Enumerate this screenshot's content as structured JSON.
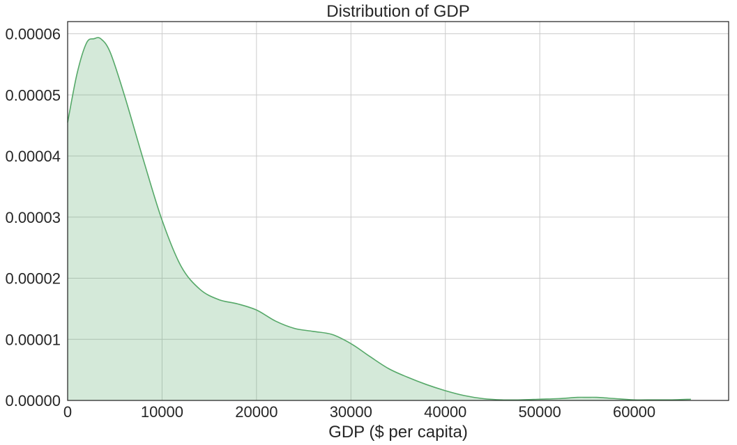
{
  "chart_data": {
    "type": "area",
    "title": "Distribution of GDP",
    "xlabel": "GDP ($ per capita)",
    "ylabel": "",
    "xlim": [
      0,
      70000
    ],
    "ylim": [
      0,
      6.2e-05
    ],
    "x_ticks": [
      0,
      10000,
      20000,
      30000,
      40000,
      50000,
      60000
    ],
    "x_tick_labels": [
      "0",
      "10000",
      "20000",
      "30000",
      "40000",
      "50000",
      "60000"
    ],
    "y_ticks": [
      0,
      1e-05,
      2e-05,
      3e-05,
      4e-05,
      5e-05,
      6e-05
    ],
    "y_tick_labels": [
      "0.00000",
      "0.00001",
      "0.00002",
      "0.00003",
      "0.00004",
      "0.00005",
      "0.00006"
    ],
    "grid": true,
    "line_color": "#55a868",
    "fill_color": "#55a868",
    "fill_opacity": 0.25,
    "series": [
      {
        "x": [
          0,
          1000,
          2000,
          2800,
          3500,
          4500,
          6000,
          8000,
          10000,
          12000,
          14000,
          16000,
          18000,
          20000,
          22000,
          24000,
          26000,
          28000,
          30000,
          32000,
          34000,
          36000,
          38000,
          40000,
          42000,
          44000,
          46000,
          48000,
          50000,
          52000,
          54000,
          55000,
          56000,
          58000,
          60000,
          62000,
          64000,
          66000
        ],
        "y": [
          4.55e-05,
          5.35e-05,
          5.85e-05,
          5.92e-05,
          5.92e-05,
          5.7e-05,
          5e-05,
          3.95e-05,
          2.95e-05,
          2.2e-05,
          1.82e-05,
          1.65e-05,
          1.58e-05,
          1.48e-05,
          1.3e-05,
          1.18e-05,
          1.13e-05,
          1.08e-05,
          9.3e-06,
          7.2e-06,
          5.2e-06,
          3.8e-06,
          2.6e-06,
          1.6e-06,
          8e-07,
          3e-07,
          1e-07,
          1e-07,
          2e-07,
          3e-07,
          5e-07,
          5e-07,
          5e-07,
          3e-07,
          1e-07,
          1e-07,
          1e-07,
          2e-07
        ]
      }
    ]
  }
}
